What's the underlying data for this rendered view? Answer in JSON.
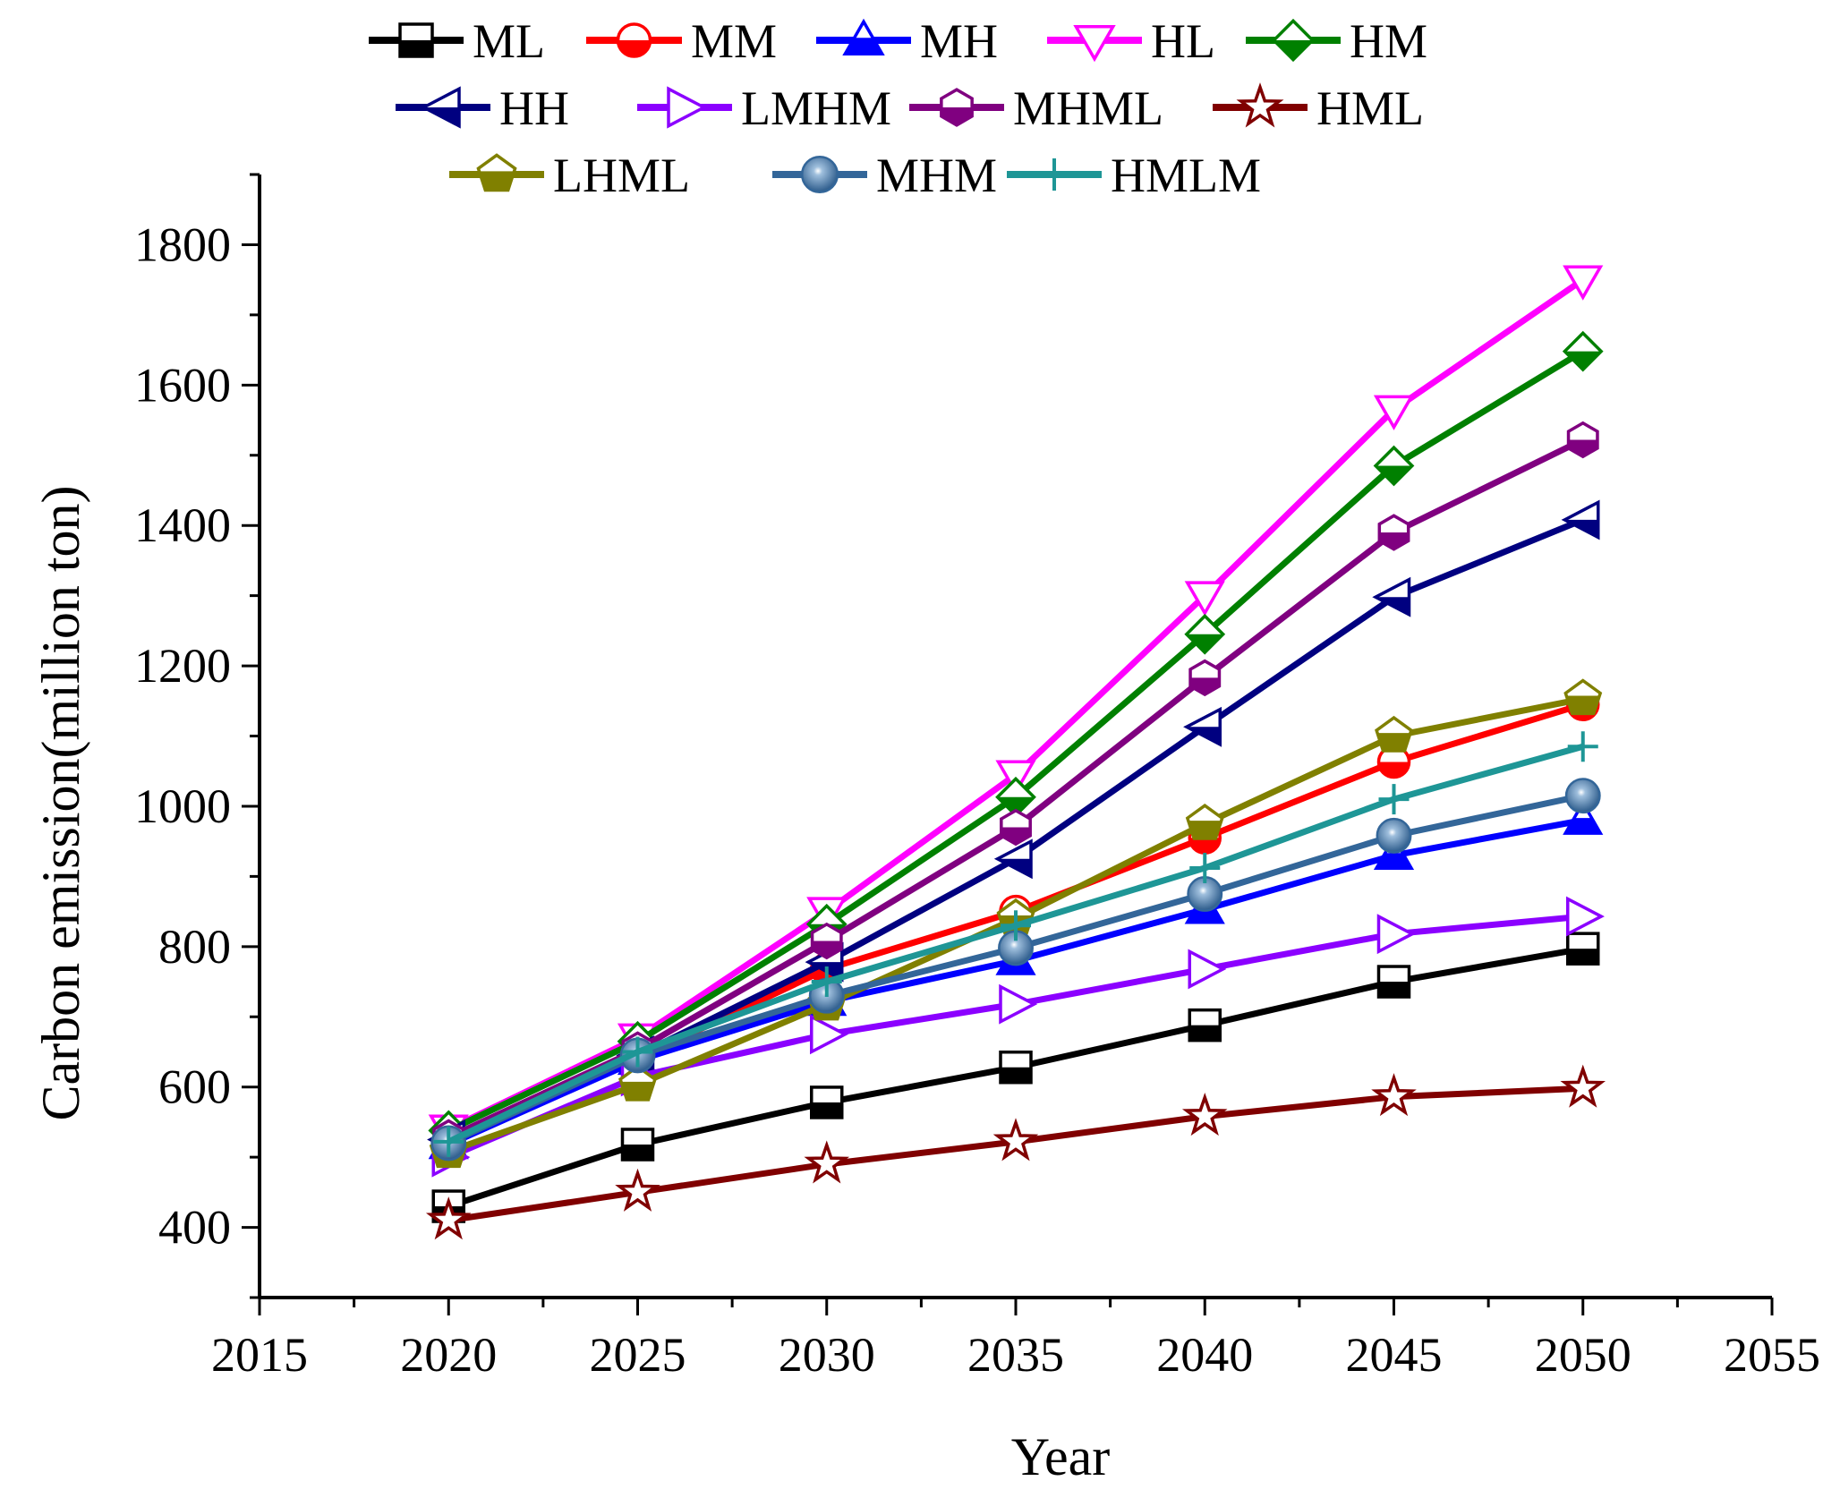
{
  "chart_data": {
    "type": "line",
    "title": "",
    "xlabel": "Year",
    "ylabel": "Carbon emission(million ton)",
    "xlim": [
      2015,
      2055
    ],
    "ylim": [
      300,
      1900
    ],
    "x_ticks": [
      2015,
      2020,
      2025,
      2030,
      2035,
      2040,
      2045,
      2050,
      2055
    ],
    "y_ticks": [
      400,
      600,
      800,
      1000,
      1200,
      1400,
      1600,
      1800
    ],
    "x": [
      2020,
      2025,
      2030,
      2035,
      2040,
      2045,
      2050
    ],
    "legend_position": "top",
    "grid": false,
    "series": [
      {
        "name": "ML",
        "color": "#000000",
        "marker": "square",
        "values": [
          430,
          518,
          578,
          628,
          688,
          750,
          797
        ]
      },
      {
        "name": "MM",
        "color": "#ff0000",
        "marker": "circle-half",
        "values": [
          520,
          640,
          768,
          850,
          955,
          1063,
          1145
        ]
      },
      {
        "name": "MH",
        "color": "#0000ff",
        "marker": "triangle-up",
        "values": [
          518,
          638,
          722,
          780,
          853,
          930,
          980
        ]
      },
      {
        "name": "HL",
        "color": "#ff00ff",
        "marker": "triangle-down",
        "values": [
          540,
          670,
          850,
          1045,
          1300,
          1565,
          1750
        ]
      },
      {
        "name": "HM",
        "color": "#008000",
        "marker": "diamond",
        "values": [
          538,
          665,
          832,
          1013,
          1245,
          1485,
          1648
        ]
      },
      {
        "name": "HH",
        "color": "#000080",
        "marker": "triangle-left",
        "values": [
          525,
          645,
          778,
          925,
          1113,
          1298,
          1408
        ]
      },
      {
        "name": "LMHM",
        "color": "#8b00ff",
        "marker": "triangle-right",
        "values": [
          500,
          615,
          675,
          718,
          768,
          818,
          843
        ]
      },
      {
        "name": "MHML",
        "color": "#800080",
        "marker": "hexagon",
        "values": [
          528,
          653,
          808,
          970,
          1183,
          1390,
          1522
        ]
      },
      {
        "name": "HML",
        "color": "#800000",
        "marker": "star",
        "values": [
          410,
          450,
          490,
          522,
          558,
          586,
          598
        ]
      },
      {
        "name": "LHML",
        "color": "#808000",
        "marker": "pentagon",
        "values": [
          508,
          603,
          718,
          840,
          975,
          1100,
          1153
        ]
      },
      {
        "name": "MHM",
        "color": "#336699",
        "marker": "sphere",
        "values": [
          520,
          645,
          730,
          798,
          875,
          958,
          1015
        ]
      },
      {
        "name": "HMLM",
        "color": "#1e9696",
        "marker": "plus",
        "values": [
          522,
          650,
          750,
          830,
          912,
          1010,
          1085
        ]
      }
    ]
  }
}
